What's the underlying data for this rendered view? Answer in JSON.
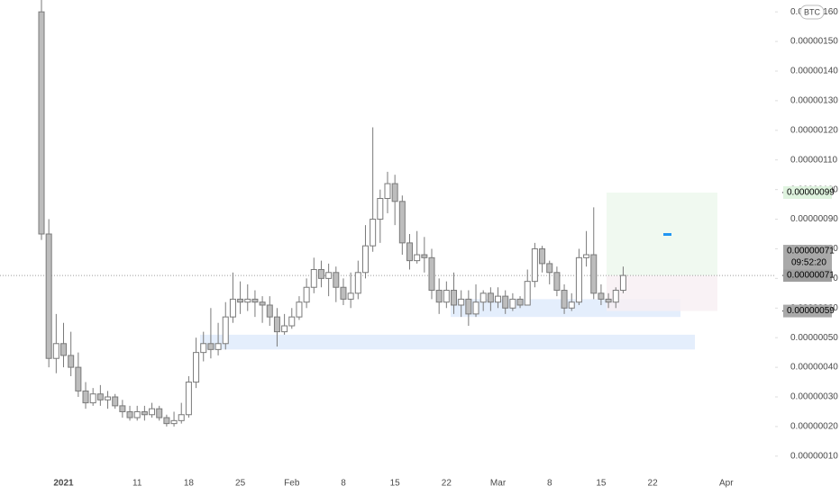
{
  "chart_data": {
    "type": "candlestick",
    "currency": "BTC",
    "categories": [
      null,
      null,
      null,
      "2021",
      null,
      null,
      null,
      null,
      null,
      null,
      null,
      null,
      null,
      "11",
      null,
      null,
      null,
      null,
      null,
      null,
      "18",
      null,
      null,
      null,
      null,
      null,
      null,
      "25",
      null,
      null,
      null,
      null,
      null,
      null,
      "Feb",
      null,
      null,
      null,
      null,
      null,
      null,
      "8",
      null,
      null,
      null,
      null,
      null,
      null,
      "15",
      null,
      null,
      null,
      null,
      null,
      null,
      "22",
      null,
      null,
      null,
      null,
      null,
      null,
      "Mar",
      null,
      null,
      null,
      null,
      null,
      null,
      "8",
      null,
      null,
      null,
      null,
      null,
      null,
      "15",
      null,
      null,
      null,
      null,
      null,
      null,
      "22",
      null,
      null,
      null,
      null,
      null,
      null,
      null,
      null,
      null,
      "Apr"
    ],
    "open": [
      1.6e-06,
      8.5e-07,
      4.3e-07,
      4.8e-07,
      4.4e-07,
      4e-07,
      3.2e-07,
      2.8e-07,
      3.1e-07,
      2.9e-07,
      3e-07,
      2.7e-07,
      2.5e-07,
      2.3e-07,
      2.5e-07,
      2.4e-07,
      2.6e-07,
      2.3e-07,
      2.1e-07,
      2.2e-07,
      2.4e-07,
      3.5e-07,
      4.5e-07,
      4.8e-07,
      4.6e-07,
      4.8e-07,
      5.7e-07,
      6.3e-07,
      6.2e-07,
      6.3e-07,
      6.2e-07,
      6.1e-07,
      5.7e-07,
      5.2e-07,
      5.4e-07,
      5.7e-07,
      6.2e-07,
      6.7e-07,
      7.3e-07,
      7e-07,
      7.2e-07,
      6.7e-07,
      6.3e-07,
      6.5e-07,
      7.2e-07,
      8.1e-07,
      9e-07,
      9.7e-07,
      1.02e-06,
      9.6e-07,
      8.2e-07,
      7.6e-07,
      7.8e-07,
      7.7e-07,
      6.6e-07,
      6.2e-07,
      6.6e-07,
      6.1e-07,
      6.3e-07,
      5.8e-07,
      6.2e-07,
      6.5e-07,
      6.2e-07,
      6.4e-07,
      6e-07,
      6.3e-07,
      6.1e-07,
      6.9e-07,
      8e-07,
      7.5e-07,
      7.2e-07,
      6.6e-07,
      6e-07,
      6.2e-07,
      7.7e-07,
      7.8e-07,
      6.5e-07,
      6.3e-07,
      6.2e-07,
      6.6e-07,
      null,
      null,
      null,
      null,
      null,
      null,
      null,
      null,
      null,
      null,
      null,
      null,
      null,
      null
    ],
    "high": [
      1.7e-06,
      9e-07,
      5.8e-07,
      5.5e-07,
      5.2e-07,
      4.5e-07,
      3.5e-07,
      3.3e-07,
      3.4e-07,
      3.2e-07,
      3.1e-07,
      2.9e-07,
      2.7e-07,
      2.7e-07,
      2.7e-07,
      2.8e-07,
      2.7e-07,
      2.4e-07,
      2.5e-07,
      2.8e-07,
      3.7e-07,
      5e-07,
      5.2e-07,
      6e-07,
      5.5e-07,
      6.2e-07,
      7.2e-07,
      6.9e-07,
      6.8e-07,
      6.6e-07,
      6.4e-07,
      6.4e-07,
      6e-07,
      5.8e-07,
      6e-07,
      6.4e-07,
      7e-07,
      7.7e-07,
      7.6e-07,
      7.5e-07,
      7.4e-07,
      7e-07,
      7.2e-07,
      7.6e-07,
      8.8e-07,
      1.21e-06,
      1e-06,
      1.06e-06,
      1.05e-06,
      9.8e-07,
      8.5e-07,
      8.6e-07,
      8.4e-07,
      8e-07,
      7e-07,
      6.9e-07,
      7.2e-07,
      6.6e-07,
      6.6e-07,
      6.8e-07,
      6.6e-07,
      6.7e-07,
      6.7e-07,
      6.6e-07,
      6.5e-07,
      6.4e-07,
      7.3e-07,
      8.2e-07,
      8.1e-07,
      7.6e-07,
      7.4e-07,
      6.8e-07,
      6.5e-07,
      8e-07,
      8.6e-07,
      9.4e-07,
      6.8e-07,
      6.5e-07,
      6.7e-07,
      7.4e-07,
      null,
      null,
      null,
      null,
      null,
      null,
      null,
      null,
      null,
      null,
      null,
      null,
      null,
      null
    ],
    "low": [
      8.3e-07,
      4e-07,
      3.8e-07,
      4e-07,
      3.7e-07,
      3e-07,
      2.6e-07,
      2.7e-07,
      2.7e-07,
      2.6e-07,
      2.6e-07,
      2.3e-07,
      2.2e-07,
      2.2e-07,
      2.2e-07,
      2.3e-07,
      2.2e-07,
      2e-07,
      2e-07,
      2.1e-07,
      2.3e-07,
      3.3e-07,
      4.2e-07,
      4.3e-07,
      4.4e-07,
      4.6e-07,
      5.5e-07,
      5.8e-07,
      5.9e-07,
      5.7e-07,
      5.5e-07,
      5.4e-07,
      4.7e-07,
      5.1e-07,
      5.3e-07,
      5.6e-07,
      6e-07,
      6.5e-07,
      6.7e-07,
      6.4e-07,
      6.2e-07,
      6.1e-07,
      6e-07,
      6.3e-07,
      7e-07,
      7.9e-07,
      8.2e-07,
      9.2e-07,
      8.8e-07,
      7.8e-07,
      7.3e-07,
      7.5e-07,
      7.2e-07,
      6.3e-07,
      5.8e-07,
      6e-07,
      5.8e-07,
      5.7e-07,
      5.4e-07,
      5.7e-07,
      5.9e-07,
      5.9e-07,
      6e-07,
      5.8e-07,
      5.9e-07,
      6e-07,
      6.1e-07,
      6.7e-07,
      7.2e-07,
      6.8e-07,
      6.4e-07,
      5.8e-07,
      5.9e-07,
      6.1e-07,
      7.4e-07,
      6.3e-07,
      6.1e-07,
      6e-07,
      6e-07,
      6.5e-07,
      null,
      null,
      null,
      null,
      null,
      null,
      null,
      null,
      null,
      null,
      null,
      null,
      null,
      null
    ],
    "close": [
      8.5e-07,
      4.3e-07,
      4.8e-07,
      4.4e-07,
      4e-07,
      3.2e-07,
      2.8e-07,
      3.1e-07,
      2.9e-07,
      3e-07,
      2.7e-07,
      2.5e-07,
      2.3e-07,
      2.5e-07,
      2.4e-07,
      2.6e-07,
      2.3e-07,
      2.1e-07,
      2.2e-07,
      2.4e-07,
      3.5e-07,
      4.5e-07,
      4.8e-07,
      4.6e-07,
      4.8e-07,
      5.7e-07,
      6.3e-07,
      6.2e-07,
      6.3e-07,
      6.2e-07,
      6.1e-07,
      5.7e-07,
      5.2e-07,
      5.4e-07,
      5.7e-07,
      6.2e-07,
      6.7e-07,
      7.3e-07,
      7e-07,
      7.2e-07,
      6.7e-07,
      6.3e-07,
      6.5e-07,
      7.2e-07,
      8.1e-07,
      9e-07,
      9.7e-07,
      1.02e-06,
      9.6e-07,
      8.2e-07,
      7.6e-07,
      7.8e-07,
      7.7e-07,
      6.6e-07,
      6.2e-07,
      6.6e-07,
      6.1e-07,
      6.3e-07,
      5.8e-07,
      6.2e-07,
      6.5e-07,
      6.2e-07,
      6.4e-07,
      6e-07,
      6.3e-07,
      6.1e-07,
      6.9e-07,
      8e-07,
      7.5e-07,
      7.2e-07,
      6.6e-07,
      6e-07,
      6.2e-07,
      7.7e-07,
      7.8e-07,
      6.5e-07,
      6.3e-07,
      6.2e-07,
      6.6e-07,
      7.1e-07,
      null,
      null,
      null,
      null,
      null,
      null,
      null,
      null,
      null,
      null,
      null,
      null,
      null,
      null
    ],
    "ylim": [
      6e-08,
      1.64e-06
    ],
    "yticks": [
      {
        "value": 1e-07,
        "label": "0.00000010"
      },
      {
        "value": 2e-07,
        "label": "0.00000020"
      },
      {
        "value": 3e-07,
        "label": "0.00000030"
      },
      {
        "value": 4e-07,
        "label": "0.00000040"
      },
      {
        "value": 5e-07,
        "label": "0.00000050"
      },
      {
        "value": 6e-07,
        "label": "0.00000060"
      },
      {
        "value": 7e-07,
        "label": "0.00000070"
      },
      {
        "value": 8e-07,
        "label": "0.00000080"
      },
      {
        "value": 9e-07,
        "label": "0.00000090"
      },
      {
        "value": 1e-06,
        "label": "0.00000100"
      },
      {
        "value": 1.1e-06,
        "label": "0.00000110"
      },
      {
        "value": 1.2e-06,
        "label": "0.00000120"
      },
      {
        "value": 1.3e-06,
        "label": "0.00000130"
      },
      {
        "value": 1.4e-06,
        "label": "0.00000140"
      },
      {
        "value": 1.5e-06,
        "label": "0.00000150"
      },
      {
        "value": 1.6e-06,
        "label": "0.00000160"
      }
    ],
    "zones": [
      {
        "low": 4.6e-07,
        "high": 5.1e-07
      },
      {
        "low": 5.7e-07,
        "high": 6.3e-07
      }
    ],
    "position": {
      "target": {
        "value": 9.9e-07,
        "label": "0.00000099"
      },
      "entry": {
        "value": 7.1e-07,
        "label": "0.00000071"
      },
      "stop": {
        "value": 5.9e-07,
        "label": "0.00000059"
      }
    },
    "last_price": {
      "value": 7.1e-07,
      "label": "0.00000071",
      "countdown": "09:52:20"
    },
    "up_color": "#ffffff",
    "down_color": "#bdbdbd",
    "wick_color": "#7a7a7a"
  }
}
